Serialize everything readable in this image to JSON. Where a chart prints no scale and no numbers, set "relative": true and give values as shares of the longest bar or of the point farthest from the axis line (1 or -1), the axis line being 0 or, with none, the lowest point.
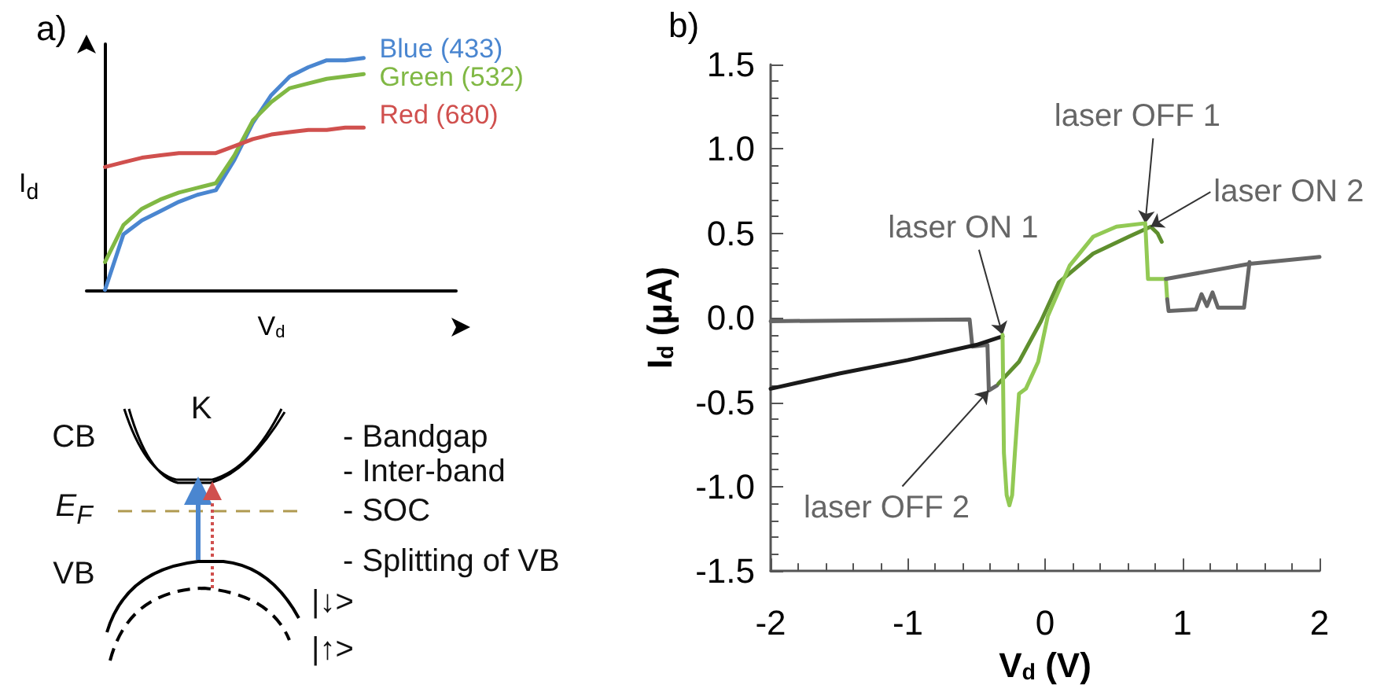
{
  "chart_data": [
    {
      "type": "line",
      "relative": true,
      "title": "a)",
      "xlabel": "V$_{d}$",
      "ylabel": "I$_{d}$",
      "categories": [
        null,
        null,
        null,
        null,
        null,
        null,
        null,
        null,
        null,
        null,
        null,
        null,
        null,
        null,
        null
      ],
      "series": [
        {
          "name": "Blue (433)",
          "color": "#4a86d0",
          "values": [
            0,
            0.24,
            0.3,
            0.34,
            0.38,
            0.41,
            0.43,
            0.56,
            0.72,
            0.84,
            0.92,
            0.96,
            0.99,
            0.99,
            1
          ]
        },
        {
          "name": "Green (532)",
          "color": "#80b844",
          "values": [
            0.12,
            0.28,
            0.35,
            0.39,
            0.42,
            0.44,
            0.46,
            0.58,
            0.73,
            0.81,
            0.87,
            0.89,
            0.91,
            0.92,
            0.93
          ]
        },
        {
          "name": "Red (680)",
          "color": "#d0504e",
          "values": [
            0.53,
            0.55,
            0.57,
            0.58,
            0.59,
            0.59,
            0.59,
            0.62,
            0.65,
            0.67,
            0.68,
            0.69,
            0.69,
            0.7,
            0.7
          ]
        }
      ]
    },
    {
      "type": "line",
      "title": "b)",
      "xlabel": "V$_{d}$ (V)",
      "ylabel": "I$_{d}$ (μA)",
      "xlim": [
        -2,
        2
      ],
      "xticks": [
        -2,
        -1,
        0,
        1,
        2
      ],
      "ylim": [
        -1.5,
        1.5
      ],
      "yticks": [
        -1.5,
        {
          "value": -1,
          "label": "-1.0"
        },
        -0.5,
        {
          "value": 0,
          "label": "0.0"
        },
        0.5,
        {
          "value": 1,
          "label": "1.0"
        },
        1.5
      ],
      "grid": false,
      "series": [
        {
          "color": "#666666",
          "x": [
            -2,
            -0.55,
            -0.53,
            -0.42,
            -0.41,
            -0.35
          ],
          "values": [
            -0.02,
            -0.01,
            -0.17,
            -0.16,
            -0.43,
            -0.4
          ]
        },
        {
          "color": "#1a1a1a",
          "x": [
            -2,
            -1.5,
            -1,
            -0.5,
            -0.31
          ],
          "values": [
            -0.42,
            -0.33,
            -0.25,
            -0.16,
            -0.11
          ]
        },
        {
          "color": "#5f8f2e",
          "x": [
            -0.34,
            -0.19,
            -0.03,
            0.1,
            0.35,
            0.61,
            0.77,
            0.82,
            0.85
          ],
          "values": [
            -0.39,
            -0.26,
            -0.02,
            0.21,
            0.38,
            0.48,
            0.54,
            0.5,
            0.45
          ]
        },
        {
          "color": "#92c954",
          "x": [
            -0.31,
            -0.3,
            -0.28,
            -0.26,
            -0.24,
            -0.22,
            -0.19,
            -0.14,
            -0.05,
            0.02,
            0.18,
            0.35,
            0.52,
            0.73,
            0.75,
            0.88,
            0.89
          ],
          "values": [
            -0.1,
            -0.8,
            -1.05,
            -1.11,
            -1.05,
            -0.8,
            -0.45,
            -0.42,
            -0.26,
            0.01,
            0.31,
            0.48,
            0.54,
            0.56,
            0.23,
            0.23,
            0.11
          ]
        },
        {
          "color": "#666666",
          "x": [
            0.88,
            1.49,
            2
          ],
          "values": [
            0.23,
            0.32,
            0.36
          ]
        },
        {
          "color": "#666666",
          "x": [
            0.89,
            0.9,
            1.1,
            1.14,
            1.18,
            1.22,
            1.26,
            1.45,
            1.49
          ],
          "values": [
            0.11,
            0.04,
            0.05,
            0.14,
            0.07,
            0.15,
            0.06,
            0.06,
            0.33
          ]
        }
      ],
      "annotations": [
        {
          "text": "laser OFF 1",
          "x": 0.73,
          "y": 0.56
        },
        {
          "text": "laser ON 2",
          "x": 0.77,
          "y": 0.54
        },
        {
          "text": "laser ON 1",
          "x": -0.31,
          "y": -0.1
        },
        {
          "text": "laser OFF 2",
          "x": -0.41,
          "y": -0.43
        }
      ]
    },
    {
      "type": "other",
      "annotations": [
        "CB",
        "K",
        "E$_{F}$",
        "VB",
        "- Bandgap",
        "- Inter-band",
        "- SOC",
        "- Splitting of VB",
        "|↓>",
        "|↑>"
      ]
    }
  ]
}
